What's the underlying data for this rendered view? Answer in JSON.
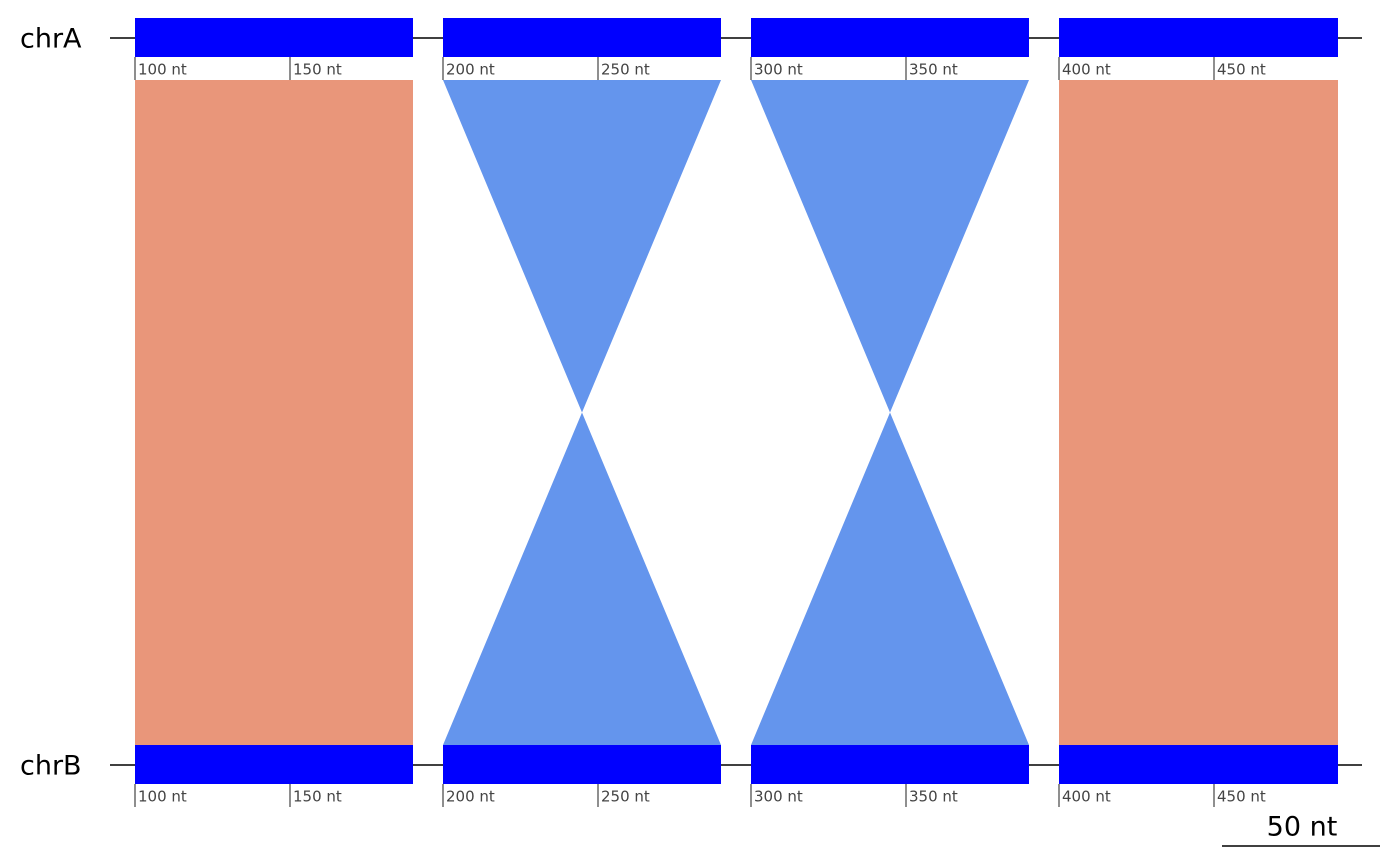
{
  "tracks": [
    {
      "label": "chrA",
      "blocks": [
        {
          "ticks": [
            "100 nt",
            "150 nt"
          ]
        },
        {
          "ticks": [
            "200 nt",
            "250 nt"
          ]
        },
        {
          "ticks": [
            "300 nt",
            "350 nt"
          ]
        },
        {
          "ticks": [
            "400 nt",
            "450 nt"
          ]
        }
      ]
    },
    {
      "label": "chrB",
      "blocks": [
        {
          "ticks": [
            "100 nt",
            "150 nt"
          ]
        },
        {
          "ticks": [
            "200 nt",
            "250 nt"
          ]
        },
        {
          "ticks": [
            "300 nt",
            "350 nt"
          ]
        },
        {
          "ticks": [
            "400 nt",
            "450 nt"
          ]
        }
      ]
    }
  ],
  "scale_bar": {
    "label": "50 nt"
  }
}
